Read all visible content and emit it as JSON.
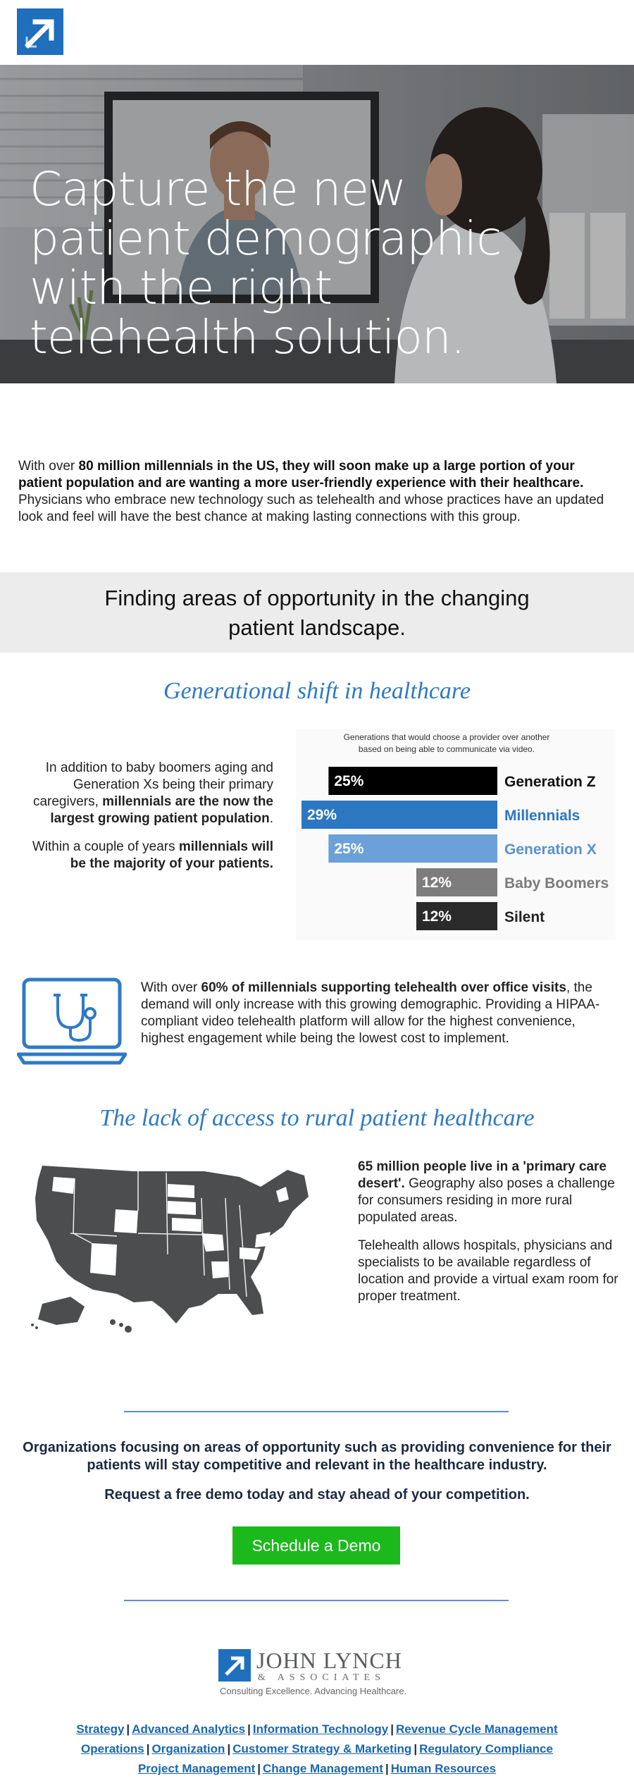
{
  "brand": {
    "accent": "#1f6fbd",
    "cta": "#1cb91c",
    "heading_blue": "#2d7ac3"
  },
  "hero": {
    "title": "Capture the new patient demographic with the right telehealth solution."
  },
  "intro": {
    "p1": "With over ",
    "b1": "80 million millennials in the US, they will soon make up a large portion of your patient population and are wanting a more user-friendly experience with their healthcare.",
    "p2": " Physicians who embrace new technology such as telehealth and whose practices have an updated look and feel will have the best chance at making lasting connections with this group."
  },
  "band": {
    "title_line1": "Finding areas of opportunity in the changing",
    "title_line2": "patient landscape."
  },
  "generational": {
    "heading": "Generational shift in healthcare",
    "left_p1_a": "In addition to baby boomers aging and Generation Xs being their primary caregivers, ",
    "left_p1_b": "millennials are the now the largest growing patient population",
    "left_p1_c": ".",
    "left_p2_a": "Within a couple of years ",
    "left_p2_b": "millennials will be the majority of your patients."
  },
  "chart_data": {
    "type": "bar",
    "orientation": "horizontal",
    "title": "Generations that would choose a provider over another based on being able to communicate via video.",
    "title_line1": "Generations that would choose a provider over another",
    "title_line2": "based on being able to communicate via video.",
    "categories": [
      "Generation Z",
      "Millennials",
      "Generation X",
      "Baby Boomers",
      "Silent"
    ],
    "values": [
      25,
      29,
      25,
      12,
      12
    ],
    "value_labels": [
      "25%",
      "29%",
      "25%",
      "12%",
      "12%"
    ],
    "unit": "%",
    "bar_colors": [
      "#000000",
      "#2b77c2",
      "#6ba0d8",
      "#7d7d7d",
      "#2a2a2a"
    ],
    "label_colors": [
      "#111111",
      "#2b77c2",
      "#5a91cf",
      "#7b7b7b",
      "#222222"
    ],
    "grid": false,
    "legend": "none"
  },
  "telehealth": {
    "a": "With over ",
    "b": "60% of millennials supporting telehealth over office visits",
    "c": ", the demand will only increase with this growing demographic. Providing a HIPAA-compliant video telehealth platform will allow for the highest convenience, highest engagement while being the lowest cost to implement."
  },
  "rural": {
    "heading": "The lack of access to rural patient healthcare",
    "p1_b": "65 million people live in a 'primary care desert'.",
    "p1_c": " Geography also poses a challenge for consumers residing in more rural populated areas.",
    "p2": "Telehealth allows hospitals, physicians and specialists to be available regardless of location and provide a virtual exam room for proper treatment."
  },
  "closing": {
    "text": "Organizations focusing on areas of opportunity such as providing convenience for their patients will stay competitive and relevant in the healthcare industry.",
    "cta_line": "Request a free demo today and stay ahead of your competition.",
    "button_label": "Schedule a Demo"
  },
  "footer": {
    "company": "JOHN LYNCH",
    "company_sub": "& ASSOCIATES",
    "tagline": "Consulting Excellence. Advancing Healthcare.",
    "links_row1": [
      "Strategy",
      "Advanced Analytics",
      "Information Technology",
      "Revenue Cycle Management"
    ],
    "links_row2": [
      "Operations",
      "Organization",
      "Customer Strategy & Marketing",
      "Regulatory Compliance"
    ],
    "links_row3": [
      "Project Management",
      "Change Management",
      "Human Resources"
    ],
    "separator": "|"
  }
}
